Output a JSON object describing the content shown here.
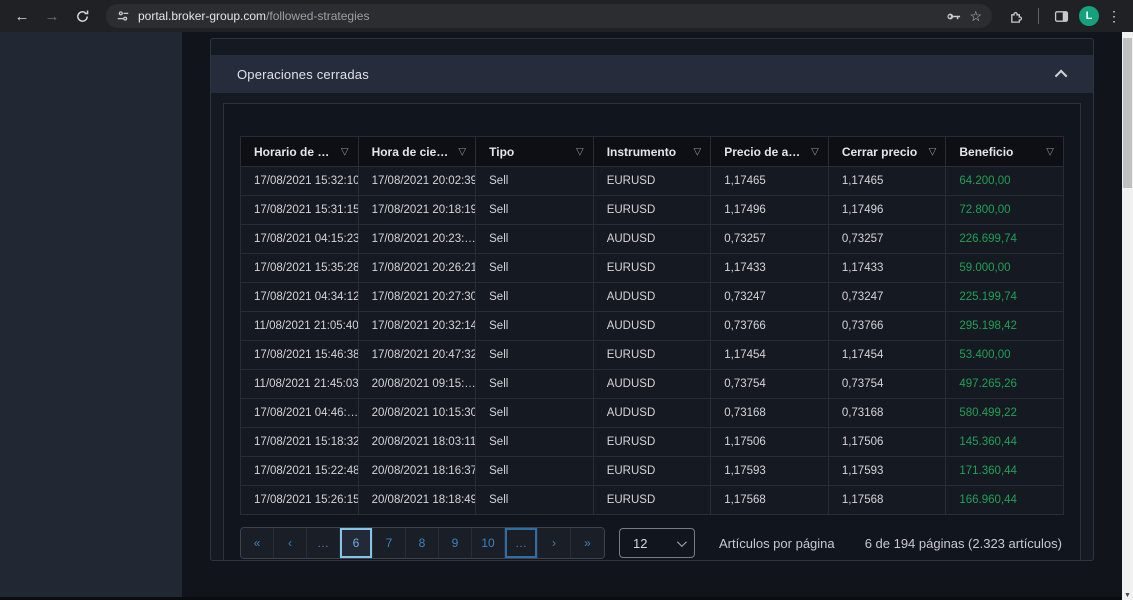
{
  "browser": {
    "url_domain": "portal.broker-group.com",
    "url_path": "/followed-strategies",
    "avatar_letter": "L"
  },
  "section": {
    "title": "Operaciones cerradas"
  },
  "table": {
    "columns": [
      {
        "label": "Horario de …"
      },
      {
        "label": "Hora de cie…"
      },
      {
        "label": "Tipo"
      },
      {
        "label": "Instrumento"
      },
      {
        "label": "Precio de a…"
      },
      {
        "label": "Cerrar precio"
      },
      {
        "label": "Beneficio"
      }
    ],
    "filter_icon_glyph": "▽",
    "rows": [
      [
        "17/08/2021 15:32:10",
        "17/08/2021 20:02:39",
        "Sell",
        "EURUSD",
        "1,17465",
        "1,17465",
        "64.200,00"
      ],
      [
        "17/08/2021 15:31:15",
        "17/08/2021 20:18:19",
        "Sell",
        "EURUSD",
        "1,17496",
        "1,17496",
        "72.800,00"
      ],
      [
        "17/08/2021 04:15:23",
        "17/08/2021 20:23:…",
        "Sell",
        "AUDUSD",
        "0,73257",
        "0,73257",
        "226.699,74"
      ],
      [
        "17/08/2021 15:35:28",
        "17/08/2021 20:26:21",
        "Sell",
        "EURUSD",
        "1,17433",
        "1,17433",
        "59.000,00"
      ],
      [
        "17/08/2021 04:34:12",
        "17/08/2021 20:27:30",
        "Sell",
        "AUDUSD",
        "0,73247",
        "0,73247",
        "225.199,74"
      ],
      [
        "11/08/2021 21:05:40",
        "17/08/2021 20:32:14",
        "Sell",
        "AUDUSD",
        "0,73766",
        "0,73766",
        "295.198,42"
      ],
      [
        "17/08/2021 15:46:38",
        "17/08/2021 20:47:32",
        "Sell",
        "EURUSD",
        "1,17454",
        "1,17454",
        "53.400,00"
      ],
      [
        "11/08/2021 21:45:03",
        "20/08/2021 09:15:…",
        "Sell",
        "AUDUSD",
        "0,73754",
        "0,73754",
        "497.265,26"
      ],
      [
        "17/08/2021 04:46:…",
        "20/08/2021 10:15:30",
        "Sell",
        "AUDUSD",
        "0,73168",
        "0,73168",
        "580.499,22"
      ],
      [
        "17/08/2021 15:18:32",
        "20/08/2021 18:03:11",
        "Sell",
        "EURUSD",
        "1,17506",
        "1,17506",
        "145.360,44"
      ],
      [
        "17/08/2021 15:22:48",
        "20/08/2021 18:16:37",
        "Sell",
        "EURUSD",
        "1,17593",
        "1,17593",
        "171.360,44"
      ],
      [
        "17/08/2021 15:26:15",
        "20/08/2021 18:18:49",
        "Sell",
        "EURUSD",
        "1,17568",
        "1,17568",
        "166.960,44"
      ]
    ]
  },
  "pagination": {
    "items": [
      {
        "label": "«",
        "name": "first-page-button"
      },
      {
        "label": "‹",
        "name": "prev-page-button"
      },
      {
        "label": "…",
        "name": "ellipsis-left-button"
      },
      {
        "label": "6",
        "name": "page-button-6",
        "current": true
      },
      {
        "label": "7",
        "name": "page-button-7"
      },
      {
        "label": "8",
        "name": "page-button-8"
      },
      {
        "label": "9",
        "name": "page-button-9"
      },
      {
        "label": "10",
        "name": "page-button-10"
      },
      {
        "label": "…",
        "name": "ellipsis-right-button",
        "focused": true
      },
      {
        "label": "›",
        "name": "next-page-button"
      },
      {
        "label": "»",
        "name": "last-page-button"
      }
    ],
    "page_size": "12",
    "per_page_label": "Artículos por página",
    "summary": "6 de 194 páginas (2.323 artículos)"
  },
  "colors": {
    "profit_green": "#1fa155",
    "pagination_blue": "#4181c2",
    "current_page_border": "#84c5e9",
    "avatar_green": "#15a17e"
  }
}
